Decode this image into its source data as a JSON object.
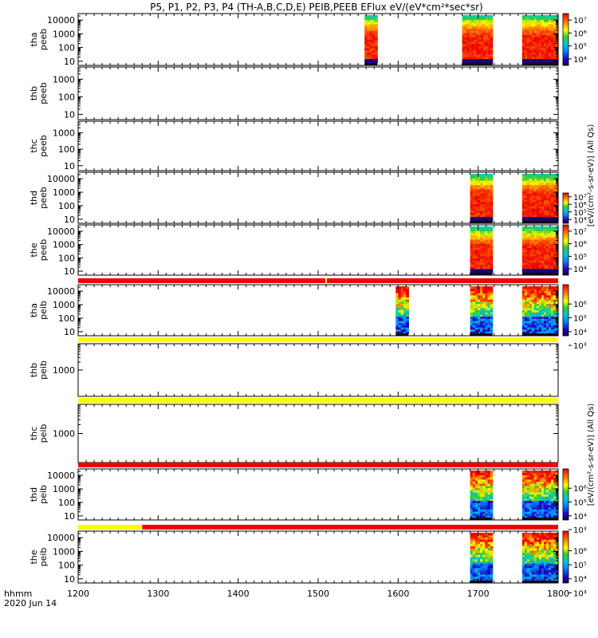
{
  "title": "P5, P1, P2, P3, P4 (TH-A,B,C,D,E) PEIB,PEEB EFlux eV/(eV*cm²*sec*sr)",
  "time_label_line1": "hhmm",
  "time_label_line2": "2020 Jun 14",
  "colorbar_unit_electrons": "[eV/(cm²-s-sr-eV)] (All Qs)",
  "colorbar_unit_ions": "[eV/(cm²-s-sr-eV)] (All Qs)",
  "colors": {
    "flag_red": "#ee0000",
    "flag_yellow": "#ffff00",
    "spectrogram_background": "#ffffff"
  },
  "chart_data": {
    "type": "heatmap",
    "x": {
      "label": "hhmm",
      "range": [
        1200,
        1800
      ],
      "ticks": [
        "1200",
        "1300",
        "1400",
        "1500",
        "1600",
        "1700",
        "1800"
      ]
    },
    "panels": [
      {
        "id": "tha-peeb",
        "ylabel": [
          "tha",
          "peeb"
        ],
        "ylim": [
          5,
          30000
        ],
        "log": true,
        "ytick_labels": [
          "10",
          "100",
          "1000",
          "10000"
        ],
        "ytick_values": [
          10,
          100,
          1000,
          10000
        ],
        "data_intervals": [
          [
            1558,
            1574
          ],
          [
            1680,
            1718
          ],
          [
            1755,
            1800
          ]
        ],
        "colorbar_ticks": [
          "10⁴",
          "10⁵",
          "10⁶",
          "10⁷"
        ],
        "colorbar_range_log": [
          3.5,
          7.5
        ]
      },
      {
        "id": "thb-peeb",
        "ylabel": [
          "thb",
          "peeb"
        ],
        "ylim": [
          5,
          5000
        ],
        "log": true,
        "ytick_labels": [
          "10",
          "100",
          "1000"
        ],
        "ytick_values": [
          10,
          100,
          1000
        ],
        "data_intervals": []
      },
      {
        "id": "thc-peeb",
        "ylabel": [
          "thc",
          "peeb"
        ],
        "ylim": [
          5,
          5000
        ],
        "log": true,
        "ytick_labels": [
          "10",
          "100",
          "1000"
        ],
        "ytick_values": [
          10,
          100,
          1000
        ],
        "data_intervals": []
      },
      {
        "id": "thd-peeb",
        "ylabel": [
          "thd",
          "peeb"
        ],
        "ylim": [
          5,
          30000
        ],
        "log": true,
        "ytick_labels": [
          "10",
          "100",
          "1000",
          "10000"
        ],
        "ytick_values": [
          10,
          100,
          1000,
          10000
        ],
        "data_intervals": [
          [
            1690,
            1718
          ],
          [
            1755,
            1800
          ]
        ],
        "colorbar_ticks": [
          "10⁴",
          "10⁵",
          "10⁶",
          "10⁷"
        ],
        "colorbar_range_log": [
          3.5,
          7.5
        ]
      },
      {
        "id": "the-peeb",
        "ylabel": [
          "the",
          "peeb"
        ],
        "ylim": [
          5,
          30000
        ],
        "log": true,
        "ytick_labels": [
          "10",
          "100",
          "1000",
          "10000"
        ],
        "ytick_values": [
          10,
          100,
          1000,
          10000
        ],
        "data_intervals": [
          [
            1690,
            1718
          ],
          [
            1755,
            1800
          ]
        ],
        "colorbar_ticks": [
          "10⁴",
          "10⁵",
          "10⁶",
          "10⁷"
        ],
        "colorbar_range_log": [
          3.5,
          7.5
        ]
      },
      {
        "id": "tha-peib",
        "ylabel": [
          "tha",
          "peib"
        ],
        "ylim": [
          5,
          30000
        ],
        "log": true,
        "ytick_labels": [
          "10",
          "100",
          "1000",
          "10000"
        ],
        "ytick_values": [
          10,
          100,
          1000,
          10000
        ],
        "data_intervals": [
          [
            1597,
            1613
          ],
          [
            1690,
            1718
          ],
          [
            1755,
            1800
          ]
        ],
        "flag_bar": [
          {
            "from": 1200,
            "to": 1509,
            "state": "red"
          },
          {
            "from": 1509,
            "to": 1511,
            "state": "yellow"
          },
          {
            "from": 1511,
            "to": 1800,
            "state": "red"
          }
        ],
        "colorbar_ticks": [
          "10³",
          "10⁴",
          "10⁵",
          "10⁶"
        ],
        "colorbar_range_log": [
          2.7,
          6.4
        ]
      },
      {
        "id": "thb-peib",
        "ylabel": [
          "thb",
          "peib"
        ],
        "ylim": [
          100,
          10000
        ],
        "log": true,
        "ytick_labels": [
          "1000"
        ],
        "ytick_values": [
          1000
        ],
        "data_intervals": [],
        "flag_bar": [
          {
            "from": 1200,
            "to": 1800,
            "state": "yellow"
          }
        ]
      },
      {
        "id": "thc-peib",
        "ylabel": [
          "thc",
          "peib"
        ],
        "ylim": [
          100,
          10000
        ],
        "log": true,
        "ytick_labels": [
          "1000"
        ],
        "ytick_values": [
          1000
        ],
        "data_intervals": [],
        "flag_bar": [
          {
            "from": 1200,
            "to": 1800,
            "state": "yellow"
          }
        ]
      },
      {
        "id": "thd-peib",
        "ylabel": [
          "thd",
          "peib"
        ],
        "ylim": [
          5,
          30000
        ],
        "log": true,
        "ytick_labels": [
          "10",
          "100",
          "1000",
          "10000"
        ],
        "ytick_values": [
          10,
          100,
          1000,
          10000
        ],
        "data_intervals": [
          [
            1690,
            1718
          ],
          [
            1755,
            1800
          ]
        ],
        "flag_bar": [
          {
            "from": 1200,
            "to": 1800,
            "state": "red"
          }
        ],
        "colorbar_ticks": [
          "10³",
          "10⁴",
          "10⁵",
          "10⁶"
        ],
        "colorbar_range_log": [
          2.7,
          6.4
        ]
      },
      {
        "id": "the-peib",
        "ylabel": [
          "the",
          "peib"
        ],
        "ylim": [
          5,
          30000
        ],
        "log": true,
        "ytick_labels": [
          "10",
          "100",
          "1000",
          "10000"
        ],
        "ytick_values": [
          10,
          100,
          1000,
          10000
        ],
        "data_intervals": [
          [
            1690,
            1718
          ],
          [
            1755,
            1800
          ]
        ],
        "flag_bar": [
          {
            "from": 1200,
            "to": 1280,
            "state": "yellow"
          },
          {
            "from": 1280,
            "to": 1800,
            "state": "red"
          }
        ],
        "colorbar_ticks": [
          "10³",
          "10⁴",
          "10⁵",
          "10⁶"
        ],
        "colorbar_range_log": [
          2.7,
          6.4
        ]
      }
    ]
  }
}
